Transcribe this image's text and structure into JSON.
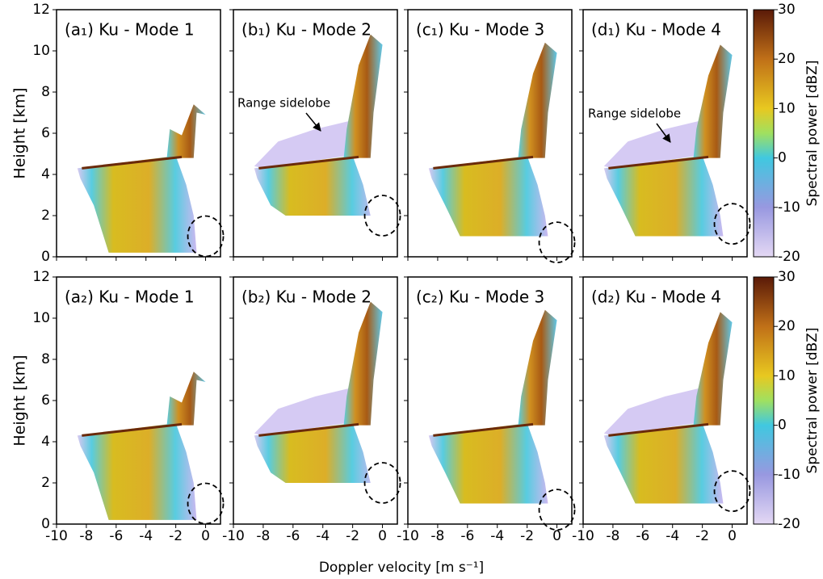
{
  "chart_data": {
    "type": "heatmap",
    "panels": [
      {
        "title": "(a₁) Ku - Mode 1"
      },
      {
        "title": "(b₁) Ku - Mode 2"
      },
      {
        "title": "(c₁) Ku - Mode 3"
      },
      {
        "title": "(d₁) Ku - Mode 4"
      },
      {
        "title": "(a₂) Ku - Mode 1"
      },
      {
        "title": "(b₂) Ku - Mode 2"
      },
      {
        "title": "(c₂) Ku - Mode 3"
      },
      {
        "title": "(d₂) Ku - Mode 4"
      }
    ],
    "xlabel": "Doppler velocity [m s⁻¹]",
    "ylabel": "Height [km]",
    "xlim": [
      -10,
      1
    ],
    "xticks": [
      -10,
      -8,
      -6,
      -4,
      -2,
      0
    ],
    "ylim": [
      0,
      12
    ],
    "yticks": [
      0,
      2,
      4,
      6,
      8,
      10,
      12
    ],
    "colorbar": {
      "label": "Spectral power [dBZ]",
      "lim": [
        -20,
        30
      ],
      "ticks": [
        -20,
        -10,
        0,
        10,
        20,
        30
      ]
    },
    "annotations": [
      "Range sidelobe",
      "Range sidelobe"
    ]
  }
}
